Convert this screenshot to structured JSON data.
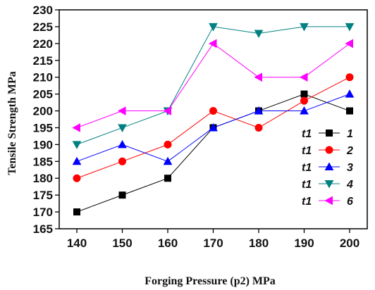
{
  "chart_data": {
    "type": "line",
    "title": "",
    "xlabel": "Forging Pressure (p2) MPa",
    "ylabel": "Tensile Strength MPa",
    "x": [
      140,
      150,
      160,
      170,
      180,
      190,
      200
    ],
    "xlim": [
      140,
      200
    ],
    "ylim": [
      165,
      230
    ],
    "yticks": [
      165,
      170,
      175,
      180,
      185,
      190,
      195,
      200,
      205,
      210,
      215,
      220,
      225,
      230
    ],
    "grid": false,
    "legend_position": "right",
    "legend_prefix": "t1",
    "series": [
      {
        "name": "1",
        "marker": "square",
        "color": "#000000",
        "values": [
          170,
          175,
          180,
          195,
          200,
          205,
          200
        ]
      },
      {
        "name": "2",
        "marker": "circle",
        "color": "#ff0000",
        "values": [
          180,
          185,
          190,
          200,
          195,
          203,
          210
        ]
      },
      {
        "name": "3",
        "marker": "triangle-up",
        "color": "#0000ff",
        "values": [
          185,
          190,
          185,
          195,
          200,
          200,
          205
        ]
      },
      {
        "name": "4",
        "marker": "triangle-down",
        "color": "#008080",
        "values": [
          190,
          195,
          200,
          225,
          223,
          225,
          225
        ]
      },
      {
        "name": "6",
        "marker": "triangle-left",
        "color": "#ff00ff",
        "values": [
          195,
          200,
          200,
          220,
          210,
          210,
          220
        ]
      }
    ]
  }
}
